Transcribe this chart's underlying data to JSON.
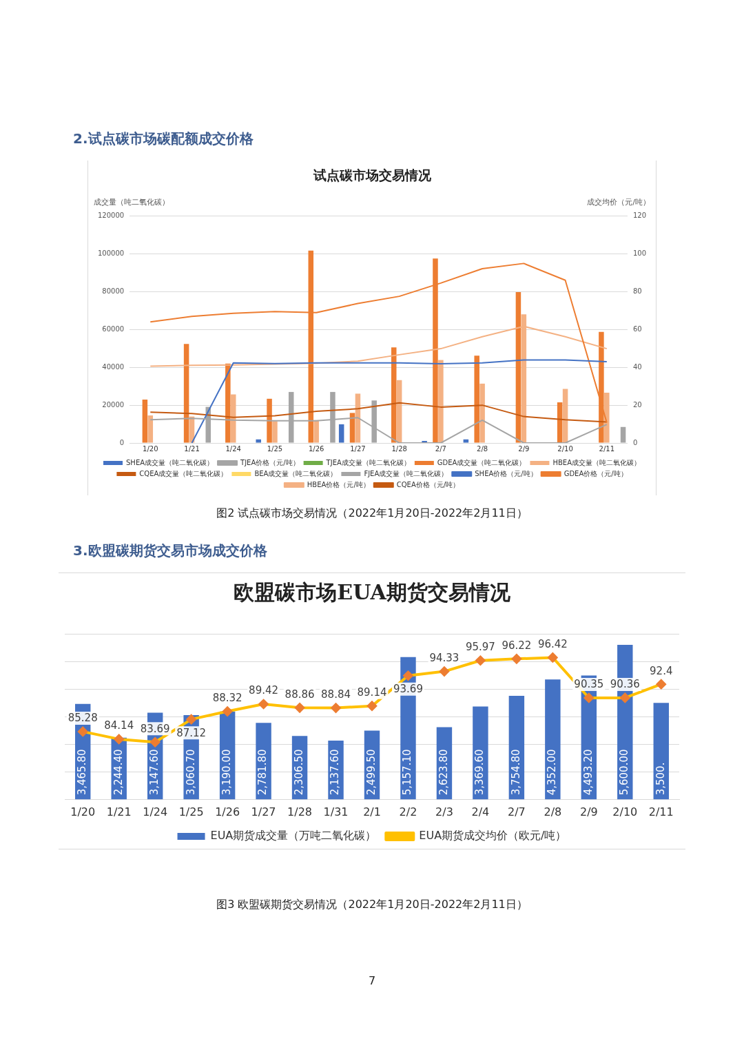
{
  "chart_data": [
    {
      "type": "bar",
      "title": "试点碳市场交易情况",
      "ylabel": "成交量（吨二氧化碳）",
      "y2label": "成交均价（元/吨）",
      "annotations": [
        "2.试点碳市场碳配额成交价格",
        "图2  试点碳市场交易情况（2022年1月20日-2022年2月11日）"
      ],
      "categories": [
        "1/20",
        "1/21",
        "1/24",
        "1/25",
        "1/26",
        "1/27",
        "1/28",
        "2/7",
        "2/8",
        "2/9",
        "2/10",
        "2/11"
      ],
      "ylim": [
        0,
        120000
      ],
      "yticks": [
        0,
        20000,
        40000,
        60000,
        80000,
        100000,
        120000
      ],
      "y2lim": [
        0,
        120
      ],
      "y2ticks": [
        0,
        20,
        40,
        60,
        80,
        100,
        120
      ],
      "grid": "y",
      "legend": "bottom",
      "series": [
        {
          "name": "SHEA成交量（吨二氧化碳）",
          "color": "#4472c4",
          "values": [
            0,
            0,
            0,
            1900,
            0,
            9900,
            0,
            1100,
            1900,
            0,
            0,
            0
          ]
        },
        {
          "name": "TJEA价格（元/吨）",
          "type": "line",
          "axis": "y2",
          "marker": "none",
          "color": "#a5a5a5",
          "values": [
            12.3,
            13.0,
            12.1,
            11.8,
            11.8,
            13.4,
            0,
            0,
            12.1,
            0,
            0,
            9.8
          ]
        },
        {
          "name": "TJEA成交量（吨二氧化碳）",
          "color": "#70ad47",
          "values": [
            0,
            0,
            0,
            0,
            0,
            0,
            0,
            0,
            0,
            0,
            0,
            0
          ]
        },
        {
          "name": "GDEA成交量（吨二氧化碳）",
          "color": "#ed7d31",
          "values": [
            23000,
            52400,
            42000,
            23400,
            101800,
            15900,
            50600,
            97600,
            46200,
            79800,
            21500,
            58800
          ]
        },
        {
          "name": "HBEA成交量（吨二氧化碳）",
          "color": "#f4b183",
          "values": [
            14600,
            14000,
            25700,
            11500,
            12100,
            26100,
            33300,
            43900,
            31400,
            68100,
            28600,
            26600
          ]
        },
        {
          "name": "CQEA成交量（吨二氧化碳）",
          "color": "#c55a11",
          "values": [
            0,
            0,
            0,
            0,
            0,
            0,
            0,
            0,
            0,
            0,
            0,
            0
          ]
        },
        {
          "name": "BEA成交量（吨二氧化碳）",
          "color": "#ffd966",
          "values": [
            0,
            0,
            0,
            0,
            0,
            0,
            0,
            0,
            0,
            0,
            0,
            0
          ]
        },
        {
          "name": "FJEA成交量（吨二氧化碳）",
          "color": "#a5a5a5",
          "values": [
            0,
            19100,
            0,
            27000,
            27000,
            22500,
            0,
            0,
            0,
            0,
            0,
            8500
          ]
        },
        {
          "name": "SHEA价格（元/吨）",
          "type": "line",
          "axis": "y2",
          "marker": "none",
          "color": "#4472c4",
          "values": [
            null,
            0,
            42.4,
            42.0,
            42.4,
            42.4,
            42.4,
            41.9,
            42.4,
            43.9,
            43.9,
            43.0
          ]
        },
        {
          "name": "GDEA价格（元/吨）",
          "type": "line",
          "axis": "y2",
          "marker": "none",
          "color": "#ed7d31",
          "values": [
            64.1,
            67.0,
            68.6,
            69.5,
            69.0,
            73.8,
            77.6,
            84.6,
            92.2,
            95.0,
            86.1,
            10.8
          ]
        },
        {
          "name": "HBEA价格（元/吨）",
          "type": "line",
          "axis": "y2",
          "marker": "none",
          "color": "#f4b183",
          "values": [
            40.6,
            41.1,
            41.3,
            41.7,
            42.2,
            43.3,
            46.7,
            49.9,
            56.2,
            61.7,
            56.2,
            49.9
          ]
        },
        {
          "name": "CQEA价格（元/吨）",
          "type": "line",
          "axis": "y2",
          "marker": "none",
          "color": "#c55a11",
          "values": [
            16.3,
            15.6,
            13.6,
            14.4,
            16.8,
            18.1,
            21.2,
            19.0,
            20.0,
            14.0,
            12.3,
            11.1
          ]
        }
      ]
    },
    {
      "type": "bar",
      "title": "欧盟碳市场EUA期货交易情况",
      "annotations": [
        "3.欧盟碳期货交易市场成交价格",
        "图3  欧盟碳期货交易情况（2022年1月20日-2022年2月11日）",
        "7"
      ],
      "categories": [
        "1/20",
        "1/21",
        "1/24",
        "1/25",
        "1/26",
        "1/27",
        "1/28",
        "1/31",
        "2/1",
        "2/2",
        "2/3",
        "2/4",
        "2/7",
        "2/8",
        "2/9",
        "2/10",
        "2/11"
      ],
      "ylim": [
        0,
        6000
      ],
      "yticks": [
        {
          "value": 0,
          "label": null
        },
        {
          "value": 1000,
          "label": null
        },
        {
          "value": 2000,
          "label": null
        },
        {
          "value": 3000,
          "label": null
        },
        {
          "value": 4000,
          "label": null
        },
        {
          "value": 5000,
          "label": null
        },
        {
          "value": 6000,
          "label": null
        }
      ],
      "tick_labels": "x",
      "grid": "y",
      "legend": "bottom",
      "series": [
        {
          "name": "EUA期货成交量（万吨二氧化碳）",
          "color": "#4472c4",
          "values": [
            3465.8,
            2244.4,
            3147.6,
            3060.7,
            3190.0,
            2781.8,
            2306.5,
            2137.6,
            2499.5,
            5157.1,
            2623.8,
            3369.6,
            3754.8,
            4352.0,
            4493.2,
            5600.0,
            3500
          ],
          "value_labels": [
            "3,465.80",
            "2,244.40",
            "3,147.60",
            "3,060.70",
            "3,190.00",
            "2,781.80",
            "2,306.50",
            "2,137.60",
            "2,499.50",
            "5,157.10",
            "2,623.80",
            "3,369.60",
            "3,754.80",
            "4,352.00",
            "4,493.20",
            "5,600.00",
            "3,500."
          ]
        },
        {
          "name": "EUA期货成交均价（欧元/吨）",
          "type": "line",
          "axis": "y2",
          "marker": "diamond",
          "color": "#ffc000",
          "values": [
            85.28,
            84.14,
            83.69,
            87.12,
            88.32,
            89.42,
            88.86,
            88.84,
            89.14,
            93.69,
            94.33,
            95.97,
            96.22,
            96.42,
            90.35,
            90.36,
            92.4
          ],
          "value_labels": [
            "85.28",
            "84.14",
            "83.69",
            "87.12",
            "88.32",
            "89.42",
            "88.86",
            "88.84",
            "89.14",
            "93.69",
            "94.33",
            "95.97",
            "96.22",
            "96.42",
            "90.35",
            "90.36",
            "92.4"
          ]
        }
      ]
    }
  ]
}
